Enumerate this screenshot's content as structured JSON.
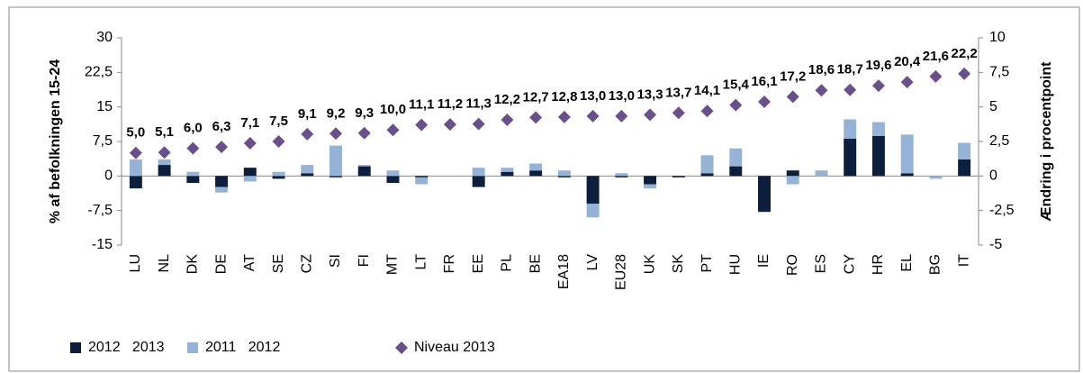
{
  "chart_data": {
    "type": "bar",
    "y_label": "% af befolkningen 15-24",
    "y2_label": "Ændring i procentpoint",
    "categories": [
      "LU",
      "NL",
      "DK",
      "DE",
      "AT",
      "SE",
      "CZ",
      "SI",
      "FI",
      "MT",
      "LT",
      "FR",
      "EE",
      "PL",
      "BE",
      "EA18",
      "LV",
      "EU28",
      "UK",
      "SK",
      "PT",
      "HU",
      "IE",
      "RO",
      "ES",
      "CY",
      "HR",
      "EL",
      "BG",
      "IT"
    ],
    "series": [
      {
        "name": "2012   2013",
        "color": "#0e1f3d",
        "type": "bar",
        "axis": "y2",
        "values": [
          -0.9,
          0.8,
          -0.5,
          -0.8,
          0.6,
          -0.2,
          0.2,
          -0.1,
          0.7,
          -0.5,
          -0.1,
          0,
          -0.8,
          0.3,
          0.4,
          -0.1,
          -2.0,
          -0.1,
          -0.6,
          -0.1,
          0.2,
          0.7,
          -2.6,
          0.4,
          0,
          2.7,
          2.9,
          0.2,
          0,
          1.2
        ]
      },
      {
        "name": "2011   2012",
        "color": "#95b3d7",
        "type": "bar",
        "axis": "y2",
        "values": [
          1.2,
          0.4,
          0.3,
          -0.4,
          -0.4,
          0.3,
          0.6,
          2.2,
          0.1,
          0.4,
          -0.5,
          0,
          0.6,
          0.3,
          0.5,
          0.4,
          -1.0,
          0.2,
          -0.3,
          0,
          1.3,
          1.3,
          0,
          -0.6,
          0.4,
          1.4,
          1.0,
          2.8,
          -0.2,
          1.2
        ]
      },
      {
        "name": "Niveau 2013",
        "color": "#6b4f8c",
        "type": "point",
        "values": [
          5.0,
          5.1,
          6.0,
          6.3,
          7.1,
          7.5,
          9.1,
          9.2,
          9.3,
          10.0,
          11.1,
          11.2,
          11.3,
          12.2,
          12.7,
          12.8,
          13.0,
          13.0,
          13.3,
          13.7,
          14.1,
          15.4,
          16.1,
          17.2,
          18.6,
          18.7,
          19.6,
          20.4,
          21.6,
          22.2
        ],
        "value_labels": [
          "5,0",
          "5,1",
          "6,0",
          "6,3",
          "7,1",
          "7,5",
          "9,1",
          "9,2",
          "9,3",
          "10,0",
          "11,1",
          "11,2",
          "11,3",
          "12,2",
          "12,7",
          "12,8",
          "13,0",
          "13,0",
          "13,3",
          "13,7",
          "14,1",
          "15,4",
          "16,1",
          "17,2",
          "18,6",
          "18,7",
          "19,6",
          "20,4",
          "21,6",
          "22,2"
        ]
      }
    ],
    "ylim": [
      -15,
      30
    ],
    "yticks": [
      -15,
      {
        "value": -7.5,
        "label": "-7,5"
      },
      0,
      {
        "value": 7.5,
        "label": "7,5"
      },
      15,
      {
        "value": 22.5,
        "label": "22,5"
      },
      30
    ],
    "y2lim": [
      -5,
      10
    ],
    "y2ticks": [
      -5,
      {
        "value": -2.5,
        "label": "-2,5"
      },
      0,
      {
        "value": 2.5,
        "label": "2,5"
      },
      5,
      {
        "value": 7.5,
        "label": "7,5"
      },
      10
    ],
    "grid": false,
    "legend": "bottom"
  }
}
